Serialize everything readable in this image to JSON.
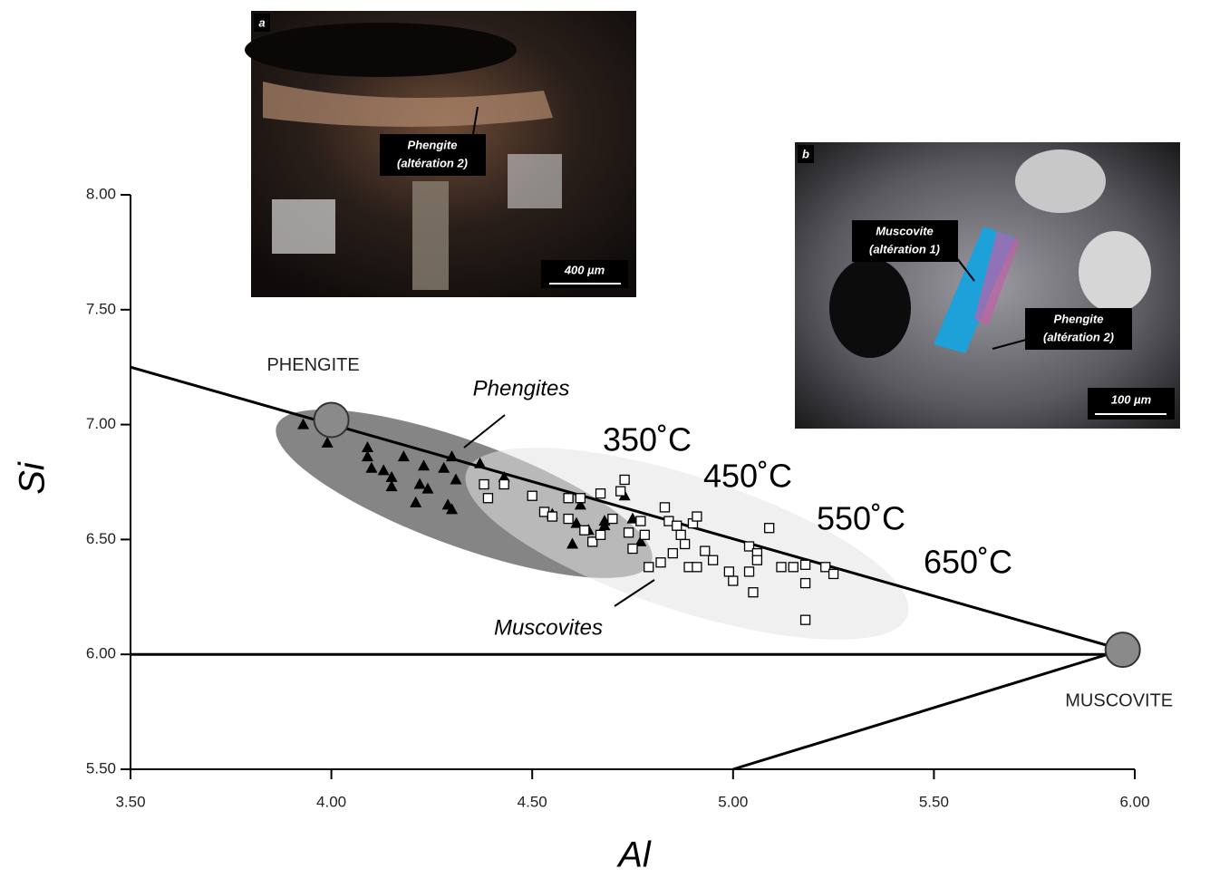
{
  "chart_data": {
    "type": "scatter",
    "x_label": "Al",
    "y_label": "Si",
    "xlim": [
      3.5,
      6.0
    ],
    "ylim": [
      5.5,
      8.0
    ],
    "xticks": [
      {
        "value": 3.5,
        "label": "3.50"
      },
      {
        "value": 4,
        "label": "4.00"
      },
      {
        "value": 4.5,
        "label": "4.50"
      },
      {
        "value": 5,
        "label": "5.00"
      },
      {
        "value": 5.5,
        "label": "5.50"
      },
      {
        "value": 6,
        "label": "6.00"
      }
    ],
    "yticks": [
      {
        "value": 5.5,
        "label": "5.50"
      },
      {
        "value": 6,
        "label": "6.00"
      },
      {
        "value": 6.5,
        "label": "6.50"
      },
      {
        "value": 7,
        "label": "7.00"
      },
      {
        "value": 7.5,
        "label": "7.50"
      },
      {
        "value": 8,
        "label": "8.00"
      }
    ],
    "series": [
      {
        "name": "Phengites",
        "marker": "triangle",
        "color": "#000000",
        "x": [
          3.93,
          3.99,
          4.09,
          4.09,
          4.1,
          4.13,
          4.15,
          4.18,
          4.15,
          4.23,
          4.24,
          4.22,
          4.21,
          4.28,
          4.3,
          4.31,
          4.29,
          4.3,
          4.37,
          4.43,
          4.55,
          4.62,
          4.61,
          4.64,
          4.6,
          4.68,
          4.68,
          4.73,
          4.75,
          4.77
        ],
        "values": [
          7.0,
          6.92,
          6.9,
          6.86,
          6.81,
          6.8,
          6.77,
          6.86,
          6.73,
          6.82,
          6.72,
          6.74,
          6.66,
          6.81,
          6.86,
          6.76,
          6.65,
          6.63,
          6.83,
          6.77,
          6.61,
          6.65,
          6.57,
          6.54,
          6.48,
          6.58,
          6.56,
          6.69,
          6.59,
          6.49
        ]
      },
      {
        "name": "Muscovites",
        "marker": "square",
        "color": "#ffffff",
        "x": [
          4.38,
          4.39,
          4.43,
          4.5,
          4.53,
          4.55,
          4.59,
          4.62,
          4.59,
          4.63,
          4.65,
          4.67,
          4.67,
          4.7,
          4.73,
          4.72,
          4.74,
          4.75,
          4.77,
          4.78,
          4.79,
          4.82,
          4.83,
          4.84,
          4.85,
          4.86,
          4.87,
          4.88,
          4.9,
          4.91,
          4.89,
          4.91,
          4.93,
          4.95,
          4.99,
          5.0,
          5.04,
          5.04,
          5.06,
          5.06,
          5.05,
          5.09,
          5.12,
          5.15,
          5.18,
          5.18,
          5.18,
          5.23,
          5.25
        ],
        "values": [
          6.74,
          6.68,
          6.74,
          6.69,
          6.62,
          6.6,
          6.68,
          6.68,
          6.59,
          6.54,
          6.49,
          6.52,
          6.7,
          6.59,
          6.76,
          6.71,
          6.53,
          6.46,
          6.58,
          6.52,
          6.38,
          6.4,
          6.64,
          6.58,
          6.44,
          6.56,
          6.52,
          6.48,
          6.57,
          6.6,
          6.38,
          6.38,
          6.45,
          6.41,
          6.36,
          6.32,
          6.47,
          6.36,
          6.44,
          6.41,
          6.27,
          6.55,
          6.38,
          6.38,
          6.31,
          6.39,
          6.15,
          6.38,
          6.35
        ]
      }
    ],
    "lines": [
      {
        "x": [
          3.5,
          5.97
        ],
        "y": [
          7.25,
          6.02
        ]
      },
      {
        "x": [
          3.5,
          5.97
        ],
        "y": [
          6.0,
          6.0
        ]
      },
      {
        "x": [
          5.0,
          5.97
        ],
        "y": [
          5.5,
          6.02
        ]
      }
    ],
    "endmembers": [
      {
        "label": "PHENGITE",
        "x": 4.0,
        "y": 7.02
      },
      {
        "label": "MUSCOVITE",
        "x": 5.97,
        "y": 6.02
      }
    ],
    "temperatures": [
      "350˚C",
      "450˚C",
      "550˚C",
      "650˚C"
    ]
  },
  "insets": [
    {
      "letter": "a",
      "labels": [
        "Phengite",
        "(altération 2)"
      ],
      "scale": "400 µm"
    },
    {
      "letter": "b",
      "labels": [
        "Muscovite",
        "(altération 1)",
        "Phengite",
        "(altération 2)"
      ],
      "scale": "100 µm"
    }
  ]
}
